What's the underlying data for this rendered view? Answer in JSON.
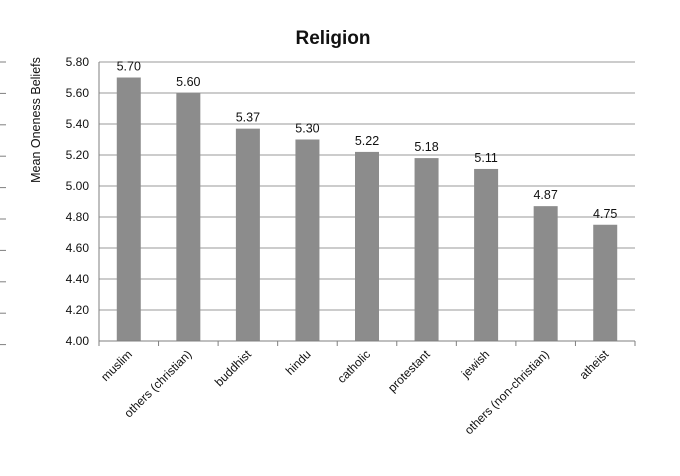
{
  "chart_data": {
    "type": "bar",
    "title": "Religion",
    "ylabel": "Mean Oneness Beliefs",
    "xlabel": "",
    "categories": [
      "muslim",
      "others (christian)",
      "buddhist",
      "hindu",
      "catholic",
      "protestant",
      "jewish",
      "others (non-christian)",
      "atheist"
    ],
    "values": [
      5.7,
      5.6,
      5.37,
      5.3,
      5.22,
      5.18,
      5.11,
      4.87,
      4.75
    ],
    "data_labels": [
      "5.70",
      "5.60",
      "5.37",
      "5.30",
      "5.22",
      "5.18",
      "5.11",
      "4.87",
      "4.75"
    ],
    "ylim": [
      4.0,
      5.8
    ],
    "yticks": [
      "4.00",
      "4.20",
      "4.40",
      "4.60",
      "4.80",
      "5.00",
      "5.20",
      "5.40",
      "5.60",
      "5.80"
    ],
    "grid": true,
    "legend": "none",
    "colors": {
      "bar": "#8c8c8c",
      "grid": "#9a9a9a",
      "axis": "#7f7f7f"
    }
  }
}
